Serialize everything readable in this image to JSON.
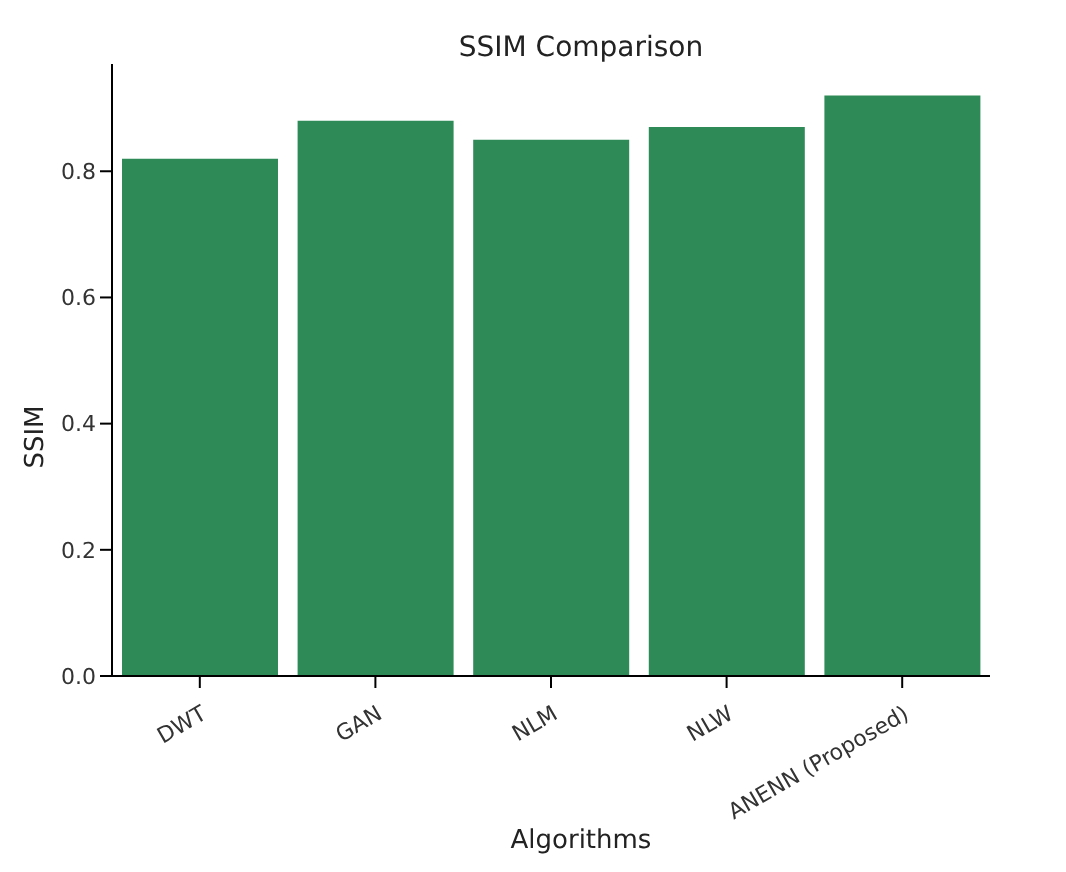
{
  "chart_data": {
    "type": "bar",
    "title": "SSIM Comparison",
    "xlabel": "Algorithms",
    "ylabel": "SSIM",
    "categories": [
      "DWT",
      "GAN",
      "NLM",
      "NLW",
      "ANENN (Proposed)"
    ],
    "values": [
      0.82,
      0.88,
      0.85,
      0.87,
      0.92
    ],
    "color": "#2e8b57",
    "ylim": [
      0,
      0.97
    ],
    "yticks": [
      {
        "value": 0,
        "label": "0.0"
      },
      {
        "value": 0.2,
        "label": "0.2"
      },
      {
        "value": 0.4,
        "label": "0.4"
      },
      {
        "value": 0.6,
        "label": "0.6"
      },
      {
        "value": 0.8,
        "label": "0.8"
      }
    ]
  }
}
